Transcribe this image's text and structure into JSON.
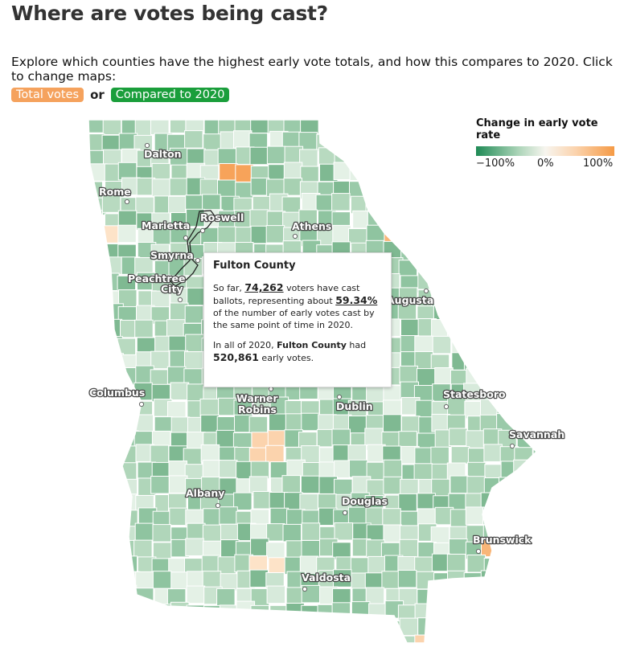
{
  "header": {
    "title": "Where are votes being cast?",
    "description": "Explore which counties have the highest early vote totals, and how this compares to 2020. Click to change maps:"
  },
  "toggles": {
    "total_label": "Total votes",
    "or_label": "or",
    "compared_label": "Compared to 2020",
    "total_color": "#f5a25d",
    "compared_color": "#1a9e3b"
  },
  "legend": {
    "title": "Change in early vote rate",
    "min_label": "−100%",
    "mid_label": "0%",
    "max_label": "100%",
    "colors": [
      "#1f8a55",
      "#a9d3b6",
      "#f7f5ef",
      "#fbd3ad",
      "#f59a45"
    ]
  },
  "map": {
    "cities": [
      {
        "name": "Dalton"
      },
      {
        "name": "Rome"
      },
      {
        "name": "Roswell"
      },
      {
        "name": "Marietta"
      },
      {
        "name": "Smyrna"
      },
      {
        "name": "Peachtree City"
      },
      {
        "name": "Athens"
      },
      {
        "name": "Augusta"
      },
      {
        "name": "Columbus"
      },
      {
        "name": "Warner Robins"
      },
      {
        "name": "Dublin"
      },
      {
        "name": "Statesboro"
      },
      {
        "name": "Savannah"
      },
      {
        "name": "Albany"
      },
      {
        "name": "Douglas"
      },
      {
        "name": "Brunswick"
      },
      {
        "name": "Valdosta"
      }
    ]
  },
  "tooltip": {
    "county": "Fulton County",
    "line1_pre": "So far, ",
    "voters": "74,262",
    "line1_post": " voters have cast ballots, representing about ",
    "percent": "59.34%",
    "line1_end": " of the number of early votes cast by the same point of time in 2020.",
    "line2_pre": "In all of 2020, ",
    "county_bold": "Fulton County",
    "line2_mid": " had ",
    "total_2020": "520,861",
    "line2_end": " early votes."
  }
}
